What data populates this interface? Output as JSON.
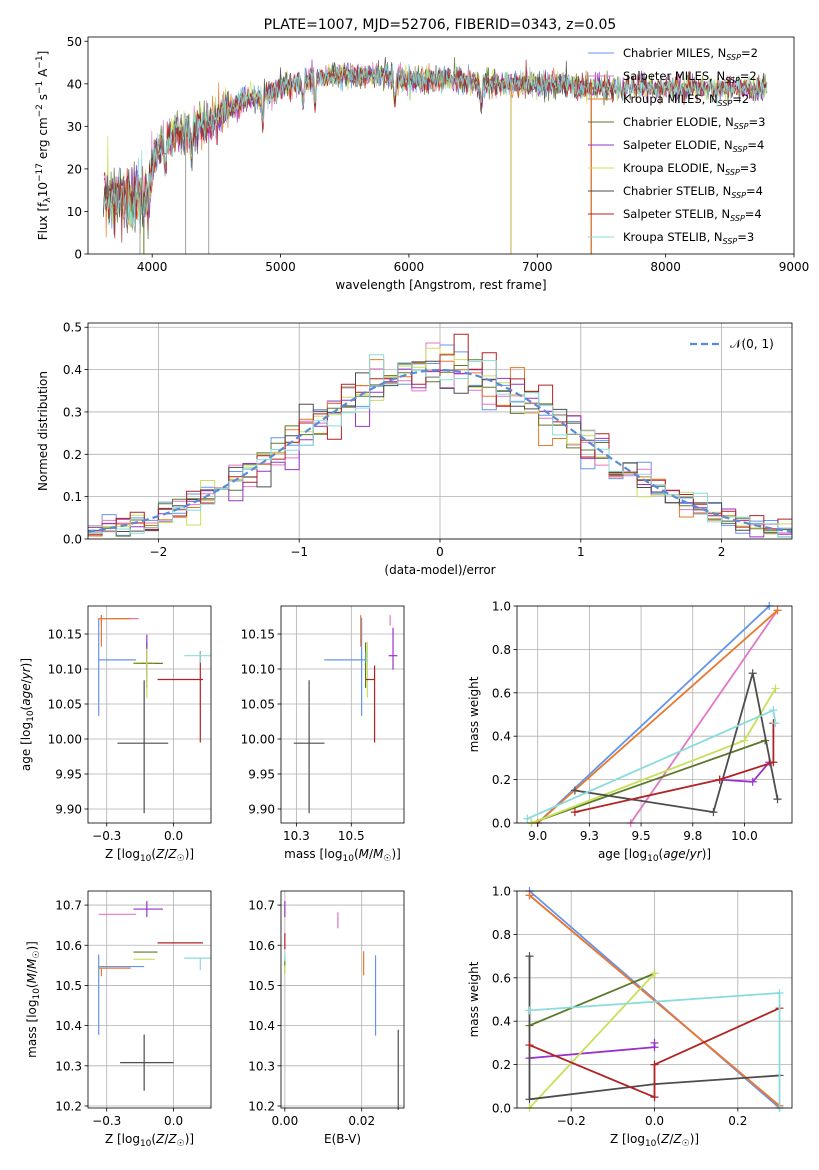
{
  "figure_title": "PLATE=1007, MJD=52706, FIBERID=0343, z=0.05",
  "models": [
    {
      "label": "Chabrier MILES, N",
      "sub": "SSP",
      "suffix": "=2",
      "color": "#6495ed"
    },
    {
      "label": "Salpeter MILES, N",
      "sub": "SSP",
      "suffix": "=2",
      "color": "#e377c2"
    },
    {
      "label": "Kroupa MILES, N",
      "sub": "SSP",
      "suffix": "=2",
      "color": "#e8782b"
    },
    {
      "label": "Chabrier ELODIE, N",
      "sub": "SSP",
      "suffix": "=3",
      "color": "#5a7a2a"
    },
    {
      "label": "Salpeter ELODIE, N",
      "sub": "SSP",
      "suffix": "=4",
      "color": "#9932cc"
    },
    {
      "label": "Kroupa ELODIE, N",
      "sub": "SSP",
      "suffix": "=3",
      "color": "#c8e05a"
    },
    {
      "label": "Chabrier STELIB, N",
      "sub": "SSP",
      "suffix": "=4",
      "color": "#4d4d4d"
    },
    {
      "label": "Salpeter STELIB, N",
      "sub": "SSP",
      "suffix": "=4",
      "color": "#b22222"
    },
    {
      "label": "Kroupa STELIB, N",
      "sub": "SSP",
      "suffix": "=3",
      "color": "#8adcdc"
    }
  ],
  "chart_data": [
    {
      "id": "spectrum",
      "type": "line",
      "title": "PLATE=1007, MJD=52706, FIBERID=0343, z=0.05",
      "xlabel": "wavelength [Angstrom, rest frame]",
      "ylabel": "Flux [f_λ 10^-17 erg cm^-2 s^-1 A^-1]",
      "xlim": [
        3500,
        9000
      ],
      "ylim": [
        0,
        51
      ],
      "xticks": [
        4000,
        5000,
        6000,
        7000,
        8000,
        9000
      ],
      "yticks": [
        0,
        10,
        20,
        30,
        40,
        50
      ],
      "continuum": [
        [
          3620,
          14
        ],
        [
          3750,
          13
        ],
        [
          3850,
          12
        ],
        [
          3950,
          16
        ],
        [
          4050,
          25
        ],
        [
          4150,
          27
        ],
        [
          4250,
          29
        ],
        [
          4400,
          30
        ],
        [
          4550,
          33
        ],
        [
          4700,
          36
        ],
        [
          4850,
          37
        ],
        [
          5000,
          39
        ],
        [
          5200,
          41
        ],
        [
          5400,
          42
        ],
        [
          5600,
          42
        ],
        [
          5800,
          42
        ],
        [
          6000,
          41
        ],
        [
          6200,
          41
        ],
        [
          6400,
          41
        ],
        [
          6600,
          40
        ],
        [
          6800,
          40
        ],
        [
          7000,
          40
        ],
        [
          7200,
          40
        ],
        [
          7400,
          39
        ],
        [
          7600,
          39
        ],
        [
          7800,
          39
        ],
        [
          8000,
          39
        ],
        [
          8200,
          39
        ],
        [
          8400,
          39
        ],
        [
          8600,
          39
        ],
        [
          8790,
          39
        ]
      ],
      "grid": false
    },
    {
      "id": "residuals",
      "type": "histogram",
      "xlabel": "(data-model)/error",
      "ylabel": "Normed distribution",
      "xlim": [
        -2.5,
        2.5
      ],
      "ylim": [
        0,
        0.51
      ],
      "xticks": [
        -2,
        -1,
        0,
        1,
        2
      ],
      "yticks": [
        0.0,
        0.1,
        0.2,
        0.3,
        0.4,
        0.5
      ],
      "reference_curve": "𝒩(0, 1)",
      "grid": true,
      "legend": "top-right"
    },
    {
      "id": "age-vs-Z",
      "type": "errorbar",
      "xlabel": "Z [log10(Z/Z☉)]",
      "ylabel": "age [log10(age/yr)]",
      "xlim": [
        -0.32,
        0.14
      ],
      "ylim": [
        9.88,
        10.19
      ],
      "xticks": [
        -0.25,
        0.0
      ],
      "yticks": [
        9.9,
        9.95,
        10.0,
        10.05,
        10.1,
        10.15
      ],
      "points": [
        {
          "x": -0.28,
          "y": 10.113,
          "xerr": [
            0.0,
            0.14
          ],
          "yerr": [
            0.08,
            0.06
          ]
        },
        {
          "x": -0.27,
          "y": 10.172,
          "xerr": [
            0.01,
            0.14
          ],
          "yerr": [
            0.01,
            0.005
          ]
        },
        {
          "x": -0.27,
          "y": 10.172,
          "xerr": [
            0.01,
            0.11
          ],
          "yerr": [
            0.04,
            0.005
          ]
        },
        {
          "x": -0.1,
          "y": 10.108,
          "xerr": [
            0.05,
            0.06
          ],
          "yerr": [
            0.035,
            0.03
          ]
        },
        {
          "x": -0.1,
          "y": 10.109,
          "xerr": [
            0.02,
            0.02
          ],
          "yerr": [
            0.02,
            0.04
          ]
        },
        {
          "x": -0.1,
          "y": 10.109,
          "xerr": [
            0.05,
            0.03
          ],
          "yerr": [
            0.05,
            0.02
          ]
        },
        {
          "x": -0.11,
          "y": 9.994,
          "xerr": [
            0.1,
            0.09
          ],
          "yerr": [
            0.1,
            0.09
          ]
        },
        {
          "x": 0.1,
          "y": 10.085,
          "xerr": [
            0.16,
            0.01
          ],
          "yerr": [
            0.09,
            0.04
          ]
        },
        {
          "x": 0.1,
          "y": 10.119,
          "xerr": [
            0.06,
            0.04
          ],
          "yerr": [
            0.01,
            0.005
          ]
        }
      ],
      "grid": true
    },
    {
      "id": "age-vs-mass",
      "type": "errorbar",
      "xlabel": "mass [log10(M/M☉)]",
      "ylabel": "",
      "xlim": [
        10.18,
        10.74
      ],
      "ylim": [
        9.88,
        10.19
      ],
      "xticks": [
        10.25,
        10.5
      ],
      "yticks": [
        9.9,
        9.95,
        10.0,
        10.05,
        10.1,
        10.15
      ],
      "points": [
        {
          "x": 10.547,
          "y": 10.113,
          "xerr": [
            0.17,
            0.03
          ],
          "yerr": [
            0.08,
            0.06
          ]
        },
        {
          "x": 10.677,
          "y": 10.172,
          "xerr": [
            0.0,
            0.0
          ],
          "yerr": [
            0.01,
            0.005
          ]
        },
        {
          "x": 10.543,
          "y": 10.172,
          "xerr": [
            0.0,
            0.0
          ],
          "yerr": [
            0.04,
            0.005
          ]
        },
        {
          "x": 10.565,
          "y": 10.108,
          "xerr": [
            0.0,
            0.0
          ],
          "yerr": [
            0.035,
            0.03
          ]
        },
        {
          "x": 10.69,
          "y": 10.119,
          "xerr": [
            0.02,
            0.02
          ],
          "yerr": [
            0.02,
            0.04
          ]
        },
        {
          "x": 10.573,
          "y": 10.109,
          "xerr": [
            0.0,
            0.0
          ],
          "yerr": [
            0.05,
            0.03
          ]
        },
        {
          "x": 10.308,
          "y": 9.994,
          "xerr": [
            0.07,
            0.07
          ],
          "yerr": [
            0.1,
            0.09
          ]
        },
        {
          "x": 10.606,
          "y": 10.085,
          "xerr": [
            0.04,
            0.0
          ],
          "yerr": [
            0.09,
            0.02
          ]
        },
        {
          "x": 10.568,
          "y": 10.119,
          "xerr": [
            0.0,
            0.0
          ],
          "yerr": [
            0.01,
            0.005
          ]
        }
      ],
      "grid": true
    },
    {
      "id": "weight-vs-age",
      "type": "line",
      "xlabel": "age [log10(age/yr)]",
      "ylabel": "mass weight",
      "xlim": [
        8.9,
        10.23
      ],
      "ylim": [
        0,
        1
      ],
      "xticks": [
        9.0,
        9.25,
        9.5,
        9.75,
        10.0
      ],
      "yticks": [
        0.0,
        0.2,
        0.4,
        0.6,
        0.8,
        1.0
      ],
      "series": [
        {
          "x": [
            9.0,
            10.12
          ],
          "y": [
            0.0,
            1.0
          ]
        },
        {
          "x": [
            9.45,
            10.16
          ],
          "y": [
            0.0,
            0.98
          ]
        },
        {
          "x": [
            9.0,
            10.16
          ],
          "y": [
            0.0,
            0.98
          ]
        },
        {
          "x": [
            8.97,
            10.1
          ],
          "y": [
            0.0,
            0.38
          ]
        },
        {
          "x": [
            9.88,
            10.04,
            10.12
          ],
          "y": [
            0.2,
            0.19,
            0.28
          ]
        },
        {
          "x": [
            8.97,
            10.0,
            10.15
          ],
          "y": [
            0.0,
            0.38,
            0.62
          ]
        },
        {
          "x": [
            9.18,
            9.85,
            10.04,
            10.16
          ],
          "y": [
            0.15,
            0.05,
            0.69,
            0.11
          ]
        },
        {
          "x": [
            9.18,
            9.88,
            10.14,
            10.14
          ],
          "y": [
            0.05,
            0.2,
            0.28,
            0.46
          ]
        },
        {
          "x": [
            8.95,
            10.14,
            10.15
          ],
          "y": [
            0.02,
            0.52,
            0.46
          ]
        }
      ],
      "grid": true
    },
    {
      "id": "mass-vs-Z",
      "type": "errorbar",
      "xlabel": "Z [log10(Z/Z☉)]",
      "ylabel": "mass [log10(M/M☉)]",
      "xlim": [
        -0.32,
        0.14
      ],
      "ylim": [
        10.195,
        10.735
      ],
      "xticks": [
        -0.25,
        0.0
      ],
      "yticks": [
        10.2,
        10.3,
        10.4,
        10.5,
        10.6,
        10.7
      ],
      "points": [
        {
          "x": -0.28,
          "y": 10.547,
          "xerr": [
            0.0,
            0.17
          ],
          "yerr": [
            0.17,
            0.03
          ]
        },
        {
          "x": -0.27,
          "y": 10.677,
          "xerr": [
            0.01,
            0.13
          ],
          "yerr": [
            0.0,
            0.0
          ]
        },
        {
          "x": -0.27,
          "y": 10.543,
          "xerr": [
            0.01,
            0.11
          ],
          "yerr": [
            0.02,
            0.0
          ]
        },
        {
          "x": -0.1,
          "y": 10.583,
          "xerr": [
            0.05,
            0.04
          ],
          "yerr": [
            0.0,
            0.0
          ]
        },
        {
          "x": -0.1,
          "y": 10.69,
          "xerr": [
            0.05,
            0.06
          ],
          "yerr": [
            0.02,
            0.02
          ]
        },
        {
          "x": -0.1,
          "y": 10.565,
          "xerr": [
            0.05,
            0.03
          ],
          "yerr": [
            0.0,
            0.0
          ]
        },
        {
          "x": -0.11,
          "y": 10.308,
          "xerr": [
            0.09,
            0.11
          ],
          "yerr": [
            0.07,
            0.07
          ]
        },
        {
          "x": 0.1,
          "y": 10.606,
          "xerr": [
            0.16,
            0.01
          ],
          "yerr": [
            0.0,
            0.0
          ]
        },
        {
          "x": 0.1,
          "y": 10.568,
          "xerr": [
            0.06,
            0.04
          ],
          "yerr": [
            0.03,
            0.0
          ]
        }
      ],
      "grid": true
    },
    {
      "id": "mass-vs-EBV",
      "type": "errorbar",
      "xlabel": "E(B-V)",
      "ylabel": "",
      "xlim": [
        -0.001,
        0.031
      ],
      "ylim": [
        10.195,
        10.735
      ],
      "xticks": [
        0.0,
        0.02
      ],
      "yticks": [
        10.2,
        10.3,
        10.4,
        10.5,
        10.6,
        10.7
      ],
      "points": [
        {
          "x": 0.0236,
          "y": 10.475,
          "yerr": [
            0.1,
            0.1
          ]
        },
        {
          "x": 0.0138,
          "y": 10.662,
          "yerr": [
            0.02,
            0.02
          ]
        },
        {
          "x": 0.0205,
          "y": 10.555,
          "yerr": [
            0.03,
            0.03
          ]
        },
        {
          "x": 0.0,
          "y": 10.55,
          "yerr": [
            0.02,
            0.02
          ]
        },
        {
          "x": 0.0,
          "y": 10.69,
          "yerr": [
            0.02,
            0.02
          ]
        },
        {
          "x": 0.0,
          "y": 10.54,
          "yerr": [
            0.01,
            0.01
          ]
        },
        {
          "x": 0.0295,
          "y": 10.29,
          "yerr": [
            0.1,
            0.1
          ]
        },
        {
          "x": 0.0,
          "y": 10.61,
          "yerr": [
            0.02,
            0.02
          ]
        },
        {
          "x": 0.0,
          "y": 10.57,
          "yerr": [
            0.01,
            0.01
          ]
        }
      ],
      "grid": true
    },
    {
      "id": "weight-vs-Z",
      "type": "line",
      "xlabel": "Z [log10(Z/Z☉)]",
      "ylabel": "mass weight",
      "xlim": [
        -0.33,
        0.33
      ],
      "ylim": [
        0,
        1
      ],
      "xticks": [
        -0.2,
        0.0,
        0.2
      ],
      "yticks": [
        0.0,
        0.2,
        0.4,
        0.6,
        0.8,
        1.0
      ],
      "series": [
        {
          "x": [
            -0.3,
            0.3
          ],
          "y": [
            1.0,
            0.0
          ]
        },
        {
          "x": [
            -0.3,
            0.3
          ],
          "y": [
            0.98,
            0.01
          ]
        },
        {
          "x": [
            -0.3,
            0.3
          ],
          "y": [
            0.98,
            0.01
          ]
        },
        {
          "x": [
            -0.3,
            0.0
          ],
          "y": [
            0.38,
            0.62
          ]
        },
        {
          "x": [
            -0.3,
            0.0,
            0.0
          ],
          "y": [
            0.23,
            0.28,
            0.3
          ]
        },
        {
          "x": [
            -0.3,
            0.0,
            0.0
          ],
          "y": [
            0.0,
            0.62,
            0.62
          ]
        },
        {
          "x": [
            -0.3,
            -0.3,
            0.0,
            0.3
          ],
          "y": [
            0.7,
            0.04,
            0.11,
            0.15
          ]
        },
        {
          "x": [
            -0.3,
            0.0,
            0.0,
            0.3
          ],
          "y": [
            0.29,
            0.05,
            0.2,
            0.46
          ]
        },
        {
          "x": [
            -0.3,
            0.3,
            0.3
          ],
          "y": [
            0.45,
            0.53,
            0.0
          ]
        }
      ],
      "grid": true
    }
  ]
}
